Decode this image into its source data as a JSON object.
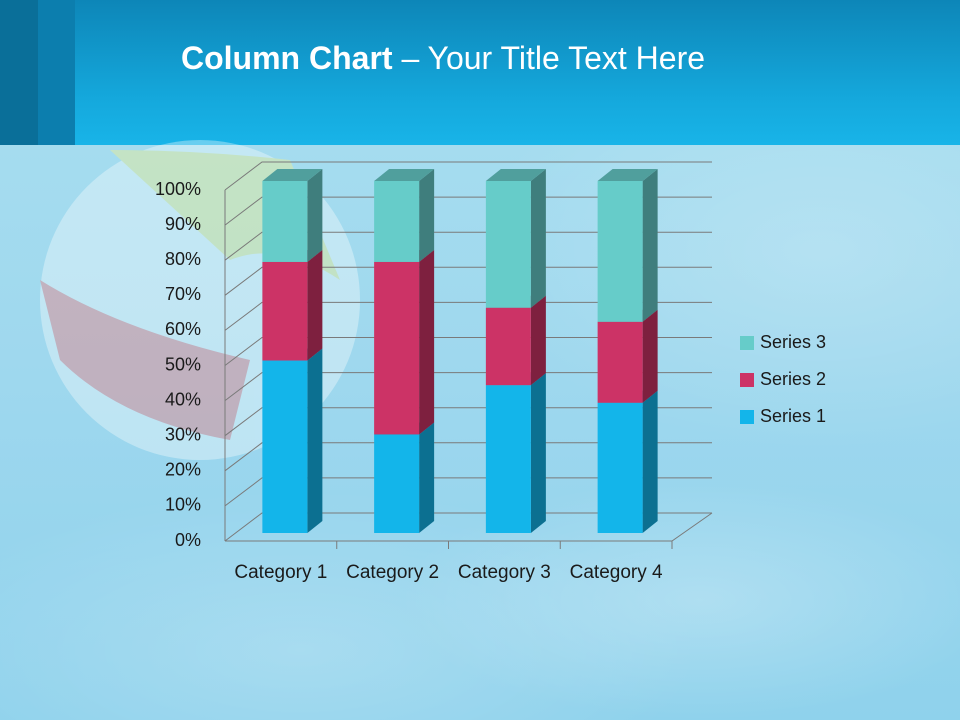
{
  "chart_data": {
    "type": "stacked_bar_3d",
    "title_bold": "Column Chart",
    "title_rest": "– Your Title Text Here",
    "categories": [
      "Category 1",
      "Category 2",
      "Category 3",
      "Category 4"
    ],
    "series": [
      {
        "name": "Series 1",
        "color": "#13b5ea",
        "values": [
          49,
          28,
          42,
          37
        ]
      },
      {
        "name": "Series 2",
        "color": "#cc3366",
        "values": [
          28,
          49,
          22,
          23
        ]
      },
      {
        "name": "Series 3",
        "color": "#66ccc9",
        "values": [
          23,
          23,
          36,
          40
        ]
      }
    ],
    "ylim": [
      0,
      100
    ],
    "yticks": [
      {
        "value": 0,
        "label": "0%"
      },
      {
        "value": 10,
        "label": "10%"
      },
      {
        "value": 20,
        "label": "20%"
      },
      {
        "value": 30,
        "label": "30%"
      },
      {
        "value": 40,
        "label": "40%"
      },
      {
        "value": 50,
        "label": "50%"
      },
      {
        "value": 60,
        "label": "60%"
      },
      {
        "value": 70,
        "label": "70%"
      },
      {
        "value": 80,
        "label": "80%"
      },
      {
        "value": 90,
        "label": "90%"
      },
      {
        "value": 100,
        "label": "100%"
      }
    ],
    "grid": true,
    "legend": "right"
  }
}
